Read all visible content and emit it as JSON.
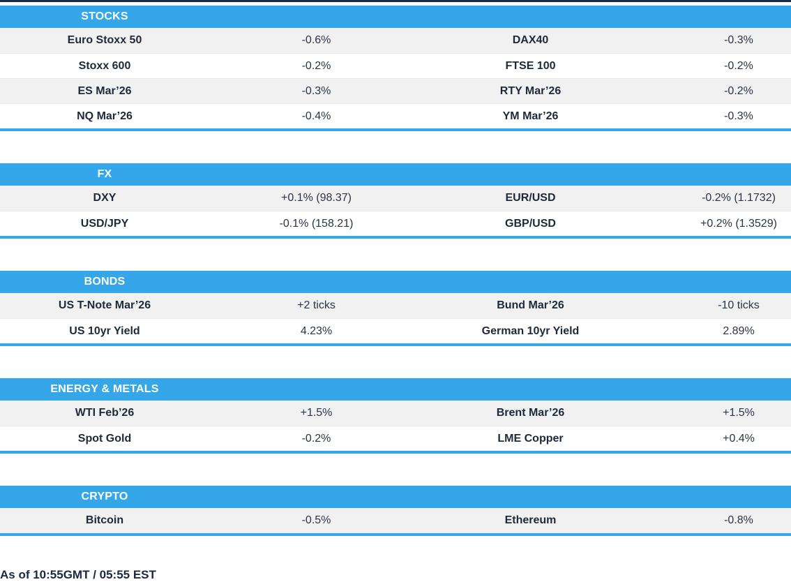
{
  "accent_color": "#35a7e8",
  "rule_color": "#1d2b45",
  "sections": [
    {
      "title": "STOCKS",
      "rows": [
        {
          "label_left": "Euro Stoxx 50",
          "value_left": "-0.6%",
          "label_right": "DAX40",
          "value_right": "-0.3%"
        },
        {
          "label_left": "Stoxx 600",
          "value_left": "-0.2%",
          "label_right": "FTSE 100",
          "value_right": "-0.2%"
        },
        {
          "label_left": "ES Mar’26",
          "value_left": "-0.3%",
          "label_right": "RTY Mar’26",
          "value_right": "-0.2%"
        },
        {
          "label_left": "NQ Mar’26",
          "value_left": "-0.4%",
          "label_right": "YM Mar’26",
          "value_right": "-0.3%"
        }
      ]
    },
    {
      "title": "FX",
      "rows": [
        {
          "label_left": "DXY",
          "value_left": "+0.1% (98.37)",
          "label_right": "EUR/USD",
          "value_right": "-0.2% (1.1732)"
        },
        {
          "label_left": "USD/JPY",
          "value_left": "-0.1% (158.21)",
          "label_right": "GBP/USD",
          "value_right": "+0.2% (1.3529)"
        }
      ]
    },
    {
      "title": "BONDS",
      "rows": [
        {
          "label_left": "US T-Note Mar’26",
          "value_left": "+2 ticks",
          "label_right": "Bund Mar’26",
          "value_right": "-10 ticks"
        },
        {
          "label_left": "US 10yr Yield",
          "value_left": "4.23%",
          "label_right": "German 10yr Yield",
          "value_right": "2.89%"
        }
      ]
    },
    {
      "title": "ENERGY & METALS",
      "rows": [
        {
          "label_left": "WTI Feb’26",
          "value_left": "+1.5%",
          "label_right": "Brent Mar’26",
          "value_right": "+1.5%"
        },
        {
          "label_left": "Spot Gold",
          "value_left": "-0.2%",
          "label_right": "LME Copper",
          "value_right": "+0.4%"
        }
      ]
    },
    {
      "title": "CRYPTO",
      "rows": [
        {
          "label_left": "Bitcoin",
          "value_left": "-0.5%",
          "label_right": "Ethereum",
          "value_right": "-0.8%"
        }
      ]
    }
  ],
  "footer": {
    "timestamp": "As of 10:55GMT / 05:55 EST"
  }
}
